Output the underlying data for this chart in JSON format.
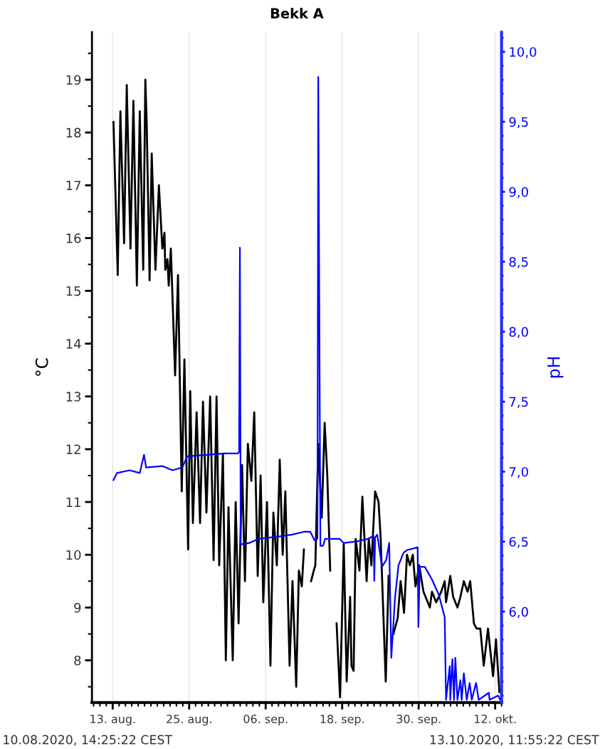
{
  "chart_data": {
    "type": "line",
    "title": "Bekk A",
    "ylabel": "°C",
    "y2label": "pH",
    "annotations": [
      "10.08.2020, 14:25:22 CEST",
      "13.10.2020, 11:55:22 CEST"
    ],
    "xlim": [
      "2020-08-09T18:00",
      "2020-10-13T00:00"
    ],
    "xticks": [
      {
        "value": "2020-08-13",
        "label": "13. aug."
      },
      {
        "value": "2020-08-25",
        "label": "25. aug."
      },
      {
        "value": "2020-09-06",
        "label": "06. sep."
      },
      {
        "value": "2020-09-18",
        "label": "18. sep."
      },
      {
        "value": "2020-09-30",
        "label": "30. sep."
      },
      {
        "value": "2020-10-12",
        "label": "12. okt."
      }
    ],
    "ylim": [
      7.2,
      19.9
    ],
    "yticks": [
      8,
      9,
      10,
      11,
      12,
      13,
      14,
      15,
      16,
      17,
      18,
      19
    ],
    "y2lim": [
      5.35,
      10.14
    ],
    "y2ticks": [
      {
        "value": 6.0,
        "label": "6,0"
      },
      {
        "value": 6.5,
        "label": "6,5"
      },
      {
        "value": 7.0,
        "label": "7,0"
      },
      {
        "value": 7.5,
        "label": "7,5"
      },
      {
        "value": 8.0,
        "label": "8,0"
      },
      {
        "value": 8.5,
        "label": "8,5"
      },
      {
        "value": 9.0,
        "label": "9,0"
      },
      {
        "value": 9.5,
        "label": "9,5"
      },
      {
        "value": 10.0,
        "label": "10,0"
      }
    ],
    "grid": "x",
    "marker": "none",
    "line_style": "solid",
    "series": [
      {
        "color": "#000000",
        "x": [
          "2020-08-13T03:00",
          "2020-08-13T19:00",
          "2020-08-14T05:00",
          "2020-08-14T19:00",
          "2020-08-15T05:00",
          "2020-08-15T19:00",
          "2020-08-16T06:00",
          "2020-08-16T19:00",
          "2020-08-17T06:00",
          "2020-08-17T19:00",
          "2020-08-18T03:00",
          "2020-08-18T08:00",
          "2020-08-18T19:00",
          "2020-08-19T03:00",
          "2020-08-19T17:00",
          "2020-08-20T06:00",
          "2020-08-20T19:00",
          "2020-08-21T03:00",
          "2020-08-21T06:00",
          "2020-08-21T14:00",
          "2020-08-21T19:00",
          "2020-08-22T03:00",
          "2020-08-22T19:00",
          "2020-08-23T06:00",
          "2020-08-23T20:00",
          "2020-08-24T06:00",
          "2020-08-24T20:00",
          "2020-08-25T04:00",
          "2020-08-25T14:00",
          "2020-08-26T04:00",
          "2020-08-26T17:00",
          "2020-08-27T04:00",
          "2020-08-27T17:00",
          "2020-08-28T07:00",
          "2020-08-28T20:00",
          "2020-08-29T07:00",
          "2020-08-29T17:00",
          "2020-08-30T07:00",
          "2020-08-30T18:00",
          "2020-08-31T04:00",
          "2020-08-31T20:00",
          "2020-09-01T07:00",
          "2020-09-01T18:00",
          "2020-09-02T07:00",
          "2020-09-02T18:00",
          "2020-09-03T05:00",
          "2020-09-03T18:00",
          "2020-09-04T05:00",
          "2020-09-04T18:00",
          "2020-09-05T05:00",
          "2020-09-05T15:00",
          "2020-09-06T05:00",
          "2020-09-06T18:00",
          "2020-09-07T05:00",
          "2020-09-07T18:00",
          "2020-09-08T05:00",
          "2020-09-08T16:00",
          "2020-09-09T02:00",
          "2020-09-09T18:00",
          "2020-09-10T05:00",
          "2020-09-10T19:00",
          "2020-09-11T05:00",
          "2020-09-11T16:00",
          "2020-09-12T00:00",
          "2020-09-12T19:00",
          "2020-09-13T03:00",
          "2020-09-13T13:00",
          "2020-09-13T19:00",
          "2020-09-14T06:00",
          "2020-09-14T19:00",
          "2020-09-15T06:00",
          "2020-09-15T16:00",
          "2020-09-16T03:00",
          "2020-09-16T14:00",
          "2020-09-17T03:00",
          "2020-09-17T16:00",
          "2020-09-18T06:00",
          "2020-09-18T17:00",
          "2020-09-19T06:00",
          "2020-09-19T11:00",
          "2020-09-19T19:00",
          "2020-09-20T03:00",
          "2020-09-20T17:00",
          "2020-09-21T04:00",
          "2020-09-21T20:00",
          "2020-09-22T04:00",
          "2020-09-22T14:00",
          "2020-09-23T04:00",
          "2020-09-23T17:00",
          "2020-09-24T01:00",
          "2020-09-24T20:00",
          "2020-09-25T07:00",
          "2020-09-25T17:00",
          "2020-09-26T01:00",
          "2020-09-26T17:00",
          "2020-09-27T04:00",
          "2020-09-27T17:00",
          "2020-09-28T04:00",
          "2020-09-28T15:00",
          "2020-09-29T02:00",
          "2020-09-29T12:00",
          "2020-09-30T02:00",
          "2020-09-30T18:00",
          "2020-10-01T18:00",
          "2020-10-02T02:00",
          "2020-10-02T18:00",
          "2020-10-03T13:00",
          "2020-10-04T02:00",
          "2020-10-04T07:00",
          "2020-10-04T23:00",
          "2020-10-05T10:00",
          "2020-10-06T02:00",
          "2020-10-06T13:00",
          "2020-10-07T02:00",
          "2020-10-07T16:00",
          "2020-10-08T02:00",
          "2020-10-08T16:00",
          "2020-10-09T02:00",
          "2020-10-09T16:00",
          "2020-10-10T05:00",
          "2020-10-10T21:00",
          "2020-10-11T16:00",
          "2020-10-12T03:00",
          "2020-10-12T16:00"
        ],
        "values": [
          18.2,
          15.3,
          18.4,
          15.9,
          18.9,
          15.8,
          18.6,
          15.1,
          18.4,
          15.4,
          19.0,
          18.2,
          15.2,
          17.6,
          15.4,
          17.0,
          15.8,
          16.1,
          15.4,
          15.6,
          15.1,
          15.8,
          13.4,
          15.3,
          11.2,
          13.7,
          10.1,
          13.1,
          10.6,
          12.7,
          10.6,
          12.9,
          10.8,
          13.0,
          9.9,
          13.0,
          9.8,
          11.9,
          8.0,
          10.9,
          8.0,
          11.0,
          8.7,
          11.7,
          9.5,
          12.1,
          11.4,
          12.7,
          9.6,
          11.5,
          9.1,
          11.0,
          7.9,
          10.8,
          9.8,
          11.8,
          10.0,
          11.2,
          7.9,
          9.5,
          7.5,
          9.7,
          9.4,
          10.1,
          null,
          9.5,
          9.7,
          9.8,
          12.1,
          10.7,
          12.5,
          11.5,
          9.7,
          null,
          8.7,
          7.3,
          10.2,
          7.6,
          9.2,
          7.9,
          7.8,
          10.3,
          9.7,
          11.1,
          9.5,
          10.3,
          9.8,
          11.2,
          11.0,
          10.3,
          7.6,
          9.6,
          null,
          8.5,
          8.8,
          9.5,
          8.9,
          10.0,
          9.8,
          10.0,
          9.4,
          9.8,
          9.3,
          9.0,
          9.3,
          9.1,
          9.3,
          9.5,
          9.1,
          9.6,
          9.2,
          9.0,
          9.2,
          9.5,
          9.3,
          9.5,
          8.7,
          8.6,
          8.6,
          7.9,
          8.6,
          7.7,
          8.4,
          7.4
        ]
      },
      {
        "color": "#0000ff",
        "axis": "y2",
        "x": [
          "2020-08-13T03:00",
          "2020-08-13T16:00",
          "2020-08-15T16:00",
          "2020-08-17T06:00",
          "2020-08-17T22:00",
          "2020-08-18T06:00",
          "2020-08-20T19:00",
          "2020-08-22T09:00",
          "2020-08-23T22:00",
          "2020-08-24T17:00",
          "2020-08-27T20:00",
          "2020-08-30T10:00",
          "2020-09-01T15:00",
          "2020-09-01T20:00",
          "2020-09-01T23:00",
          "2020-09-02T02:00",
          "2020-09-03T10:00",
          "2020-09-04T21:00",
          "2020-09-06T18:00",
          "2020-09-08T16:00",
          "2020-09-10T03:00",
          "2020-09-12T00:00",
          "2020-09-13T00:00",
          "2020-09-13T16:00",
          "2020-09-14T03:00",
          "2020-09-14T06:00",
          "2020-09-14T14:00",
          "2020-09-15T00:00",
          "2020-09-15T08:00",
          "2020-09-17T14:00",
          "2020-09-18T06:00",
          "2020-09-20T03:00",
          "2020-09-22T01:00",
          "2020-09-22T22:00",
          "2020-09-23T01:00",
          "2020-09-23T04:00",
          "2020-09-23T12:00",
          "2020-09-24T06:00",
          "2020-09-24T22:00",
          "2020-09-25T09:00",
          "2020-09-25T17:00",
          "2020-09-26T07:00",
          "2020-09-26T20:00",
          "2020-09-27T15:00",
          "2020-09-28T04:00",
          "2020-09-29T02:00",
          "2020-09-29T20:00",
          "2020-09-29T23:00",
          "2020-09-30T04:00",
          "2020-09-30T23:00",
          "2020-10-02T02:00",
          "2020-10-03T04:00",
          "2020-10-04T02:00",
          "2020-10-04T07:00",
          "2020-10-04T21:00",
          "2020-10-04T23:00",
          "2020-10-05T07:00",
          "2020-10-05T13:00",
          "2020-10-05T18:00",
          "2020-10-06T02:00",
          "2020-10-06T13:00",
          "2020-10-06T18:00",
          "2020-10-07T02:00",
          "2020-10-07T13:00",
          "2020-10-08T00:00",
          "2020-10-08T08:00",
          "2020-10-09T00:00",
          "2020-10-09T10:00",
          "2020-10-11T00:00",
          "2020-10-11T03:00",
          "2020-10-12T11:00",
          "2020-10-12T19:00"
        ],
        "values": [
          6.94,
          6.99,
          7.01,
          6.99,
          7.12,
          7.03,
          7.04,
          7.01,
          7.03,
          7.11,
          7.12,
          7.13,
          7.13,
          7.14,
          8.6,
          6.48,
          6.49,
          6.52,
          6.53,
          6.54,
          6.55,
          6.57,
          6.57,
          6.51,
          6.52,
          9.82,
          6.47,
          6.47,
          6.52,
          6.52,
          6.49,
          6.5,
          6.52,
          6.54,
          6.22,
          6.53,
          6.55,
          6.32,
          6.37,
          6.49,
          5.67,
          6.1,
          6.33,
          6.42,
          6.44,
          6.45,
          6.46,
          5.89,
          6.32,
          6.32,
          6.23,
          6.12,
          5.96,
          5.37,
          5.61,
          5.37,
          5.66,
          5.37,
          5.67,
          5.37,
          5.51,
          5.37,
          5.56,
          5.37,
          5.49,
          5.37,
          5.49,
          5.37,
          5.42,
          5.37,
          5.4,
          5.37
        ]
      }
    ]
  }
}
